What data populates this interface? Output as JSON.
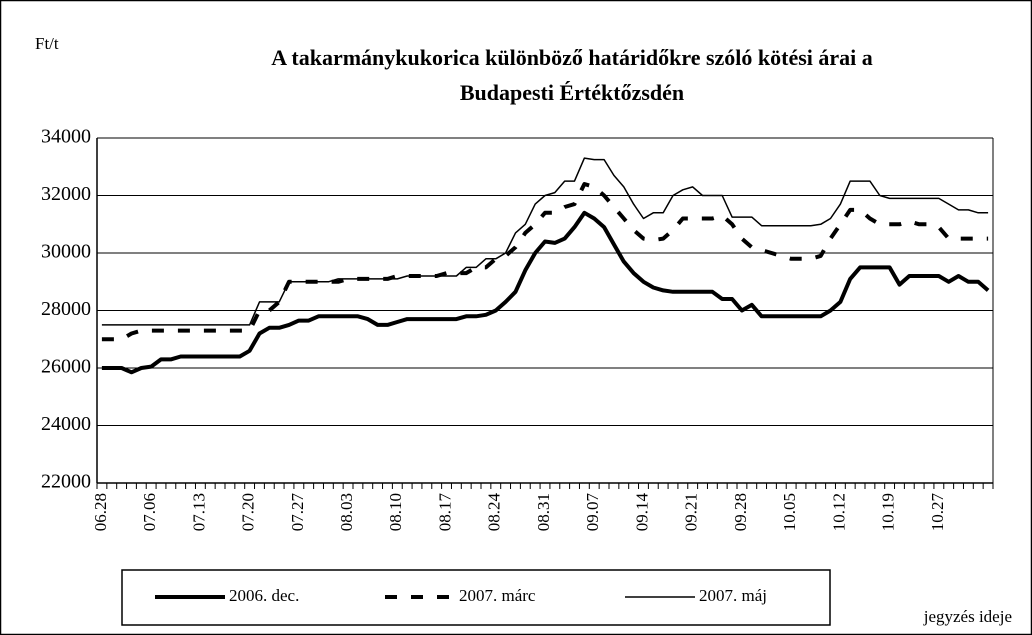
{
  "chart_data": {
    "type": "line",
    "title": [
      "A takarmánykukorica különböző határidőkre szóló kötési árai a",
      "Budapesti Értéktőzsdén"
    ],
    "y_label": "Ft/t",
    "x_label": "jegyzés ideje",
    "categories": [
      "06.28",
      null,
      null,
      null,
      null,
      "07.06",
      null,
      null,
      null,
      null,
      "07.13",
      null,
      null,
      null,
      null,
      "07.20",
      null,
      null,
      null,
      null,
      "07.27",
      null,
      null,
      null,
      null,
      "08.03",
      null,
      null,
      null,
      null,
      "08.10",
      null,
      null,
      null,
      null,
      "08.17",
      null,
      null,
      null,
      null,
      "08.24",
      null,
      null,
      null,
      null,
      "08.31",
      null,
      null,
      null,
      null,
      "09.07",
      null,
      null,
      null,
      null,
      "09.14",
      null,
      null,
      null,
      null,
      "09.21",
      null,
      null,
      null,
      null,
      "09.28",
      null,
      null,
      null,
      null,
      "10.05",
      null,
      null,
      null,
      null,
      "10.12",
      null,
      null,
      null,
      null,
      "10.19",
      null,
      null,
      null,
      null,
      "10.27",
      null,
      null,
      null,
      null,
      null
    ],
    "ylim": [
      22000,
      34000
    ],
    "yticks": [
      22000,
      24000,
      26000,
      28000,
      30000,
      32000,
      34000
    ],
    "grid": true,
    "legend": "bottom",
    "series": [
      {
        "name": "2006. dec.",
        "color": "#000000",
        "style": "thick",
        "values": [
          26000,
          26000,
          26000,
          25850,
          26000,
          26050,
          26300,
          26300,
          26400,
          26400,
          26400,
          26400,
          26400,
          26400,
          26400,
          26600,
          27200,
          27400,
          27400,
          27500,
          27650,
          27650,
          27800,
          27800,
          27800,
          27800,
          27800,
          27700,
          27500,
          27500,
          27600,
          27700,
          27700,
          27700,
          27700,
          27700,
          27700,
          27800,
          27800,
          27850,
          28000,
          28300,
          28650,
          29400,
          30000,
          30400,
          30350,
          30500,
          30900,
          31400,
          31200,
          30900,
          30300,
          29700,
          29300,
          29000,
          28800,
          28700,
          28650,
          28650,
          28650,
          28650,
          28650,
          28400,
          28400,
          28000,
          28200,
          27800,
          27800,
          27800,
          27800,
          27800,
          27800,
          27800,
          28000,
          28300,
          29100,
          29500,
          29500,
          29500,
          29500,
          28900,
          29200,
          29200,
          29200,
          29200,
          29000,
          29200,
          29000,
          29000,
          28700
        ]
      },
      {
        "name": "2007. márc",
        "color": "#000000",
        "style": "dashed",
        "values": [
          27000,
          27000,
          27000,
          27200,
          27300,
          27300,
          27300,
          27300,
          27300,
          27300,
          27300,
          27300,
          27300,
          27300,
          27300,
          27300,
          28000,
          28000,
          28300,
          29000,
          29000,
          29000,
          29000,
          29000,
          29000,
          29100,
          29100,
          29100,
          29100,
          29100,
          29200,
          29200,
          29200,
          29200,
          29200,
          29300,
          29300,
          29300,
          29500,
          29500,
          29800,
          29900,
          30200,
          30700,
          31000,
          31400,
          31400,
          31600,
          31700,
          32400,
          32300,
          32000,
          31600,
          31200,
          30800,
          30500,
          30450,
          30500,
          30800,
          31200,
          31200,
          31200,
          31200,
          31300,
          31000,
          30500,
          30200,
          30100,
          30000,
          29900,
          29800,
          29800,
          29800,
          29900,
          30500,
          31000,
          31500,
          31500,
          31200,
          31000,
          31000,
          31000,
          31100,
          31000,
          31000,
          30900,
          30500,
          30500,
          30500,
          30500,
          30500
        ]
      },
      {
        "name": "2007. máj",
        "color": "#000000",
        "style": "thin",
        "values": [
          27500,
          27500,
          27500,
          27500,
          27500,
          27500,
          27500,
          27500,
          27500,
          27500,
          27500,
          27500,
          27500,
          27500,
          27500,
          27500,
          28300,
          28300,
          28300,
          29000,
          29000,
          29000,
          29000,
          29000,
          29100,
          29100,
          29100,
          29100,
          29100,
          29100,
          29100,
          29200,
          29200,
          29200,
          29200,
          29200,
          29200,
          29500,
          29500,
          29800,
          29800,
          30000,
          30700,
          31000,
          31700,
          32000,
          32100,
          32500,
          32500,
          33300,
          33250,
          33250,
          32700,
          32300,
          31700,
          31200,
          31400,
          31400,
          32000,
          32200,
          32300,
          32000,
          32000,
          32000,
          31250,
          31250,
          31250,
          30950,
          30950,
          30950,
          30950,
          30950,
          30950,
          31000,
          31200,
          31700,
          32500,
          32500,
          32500,
          32000,
          31900,
          31900,
          31900,
          31900,
          31900,
          31900,
          31700,
          31500,
          31500,
          31400,
          31400
        ]
      }
    ]
  }
}
